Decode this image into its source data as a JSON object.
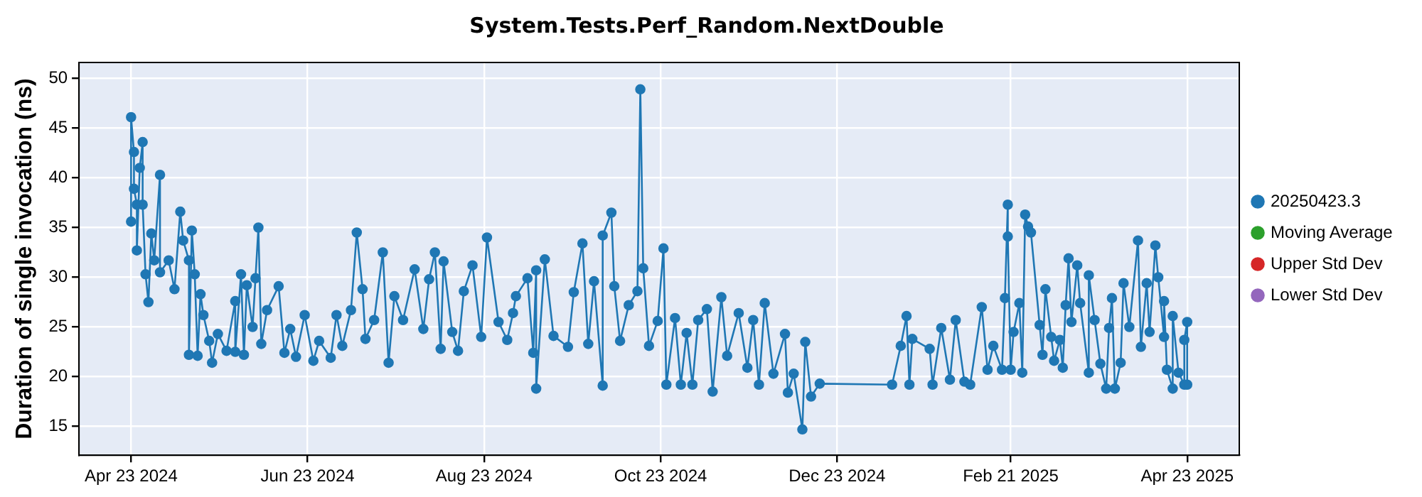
{
  "chart_data": {
    "type": "line",
    "title": "System.Tests.Perf_Random.NextDouble",
    "ylabel": "Duration of single invocation (ns)",
    "xlim": [
      "2024-04-05",
      "2025-05-11"
    ],
    "xticks": [
      {
        "value": "2024-04-23",
        "label": "Apr 23 2024"
      },
      {
        "value": "2024-06-23",
        "label": "Jun 23 2024"
      },
      {
        "value": "2024-08-23",
        "label": "Aug 23 2024"
      },
      {
        "value": "2024-10-23",
        "label": "Oct 23 2024"
      },
      {
        "value": "2024-12-23",
        "label": "Dec 23 2024"
      },
      {
        "value": "2025-02-21",
        "label": "Feb 21 2025"
      },
      {
        "value": "2025-04-23",
        "label": "Apr 23 2025"
      }
    ],
    "ylim": [
      12.1,
      51.6
    ],
    "yticks": [
      15,
      20,
      25,
      30,
      35,
      40,
      45,
      50
    ],
    "grid": true,
    "legend": "right",
    "marker": "circle",
    "line_style": "solid",
    "x": [
      "2024-04-23",
      "2024-04-23",
      "2024-04-24",
      "2024-04-24",
      "2024-04-25",
      "2024-04-25",
      "2024-04-26",
      "2024-04-27",
      "2024-04-27",
      "2024-04-28",
      "2024-04-29",
      "2024-04-30",
      "2024-05-01",
      "2024-05-03",
      "2024-05-03",
      "2024-05-06",
      "2024-05-08",
      "2024-05-10",
      "2024-05-11",
      "2024-05-13",
      "2024-05-13",
      "2024-05-14",
      "2024-05-15",
      "2024-05-16",
      "2024-05-17",
      "2024-05-18",
      "2024-05-20",
      "2024-05-21",
      "2024-05-23",
      "2024-05-26",
      "2024-05-29",
      "2024-05-29",
      "2024-05-31",
      "2024-06-01",
      "2024-06-02",
      "2024-06-04",
      "2024-06-05",
      "2024-06-06",
      "2024-06-07",
      "2024-06-09",
      "2024-06-13",
      "2024-06-15",
      "2024-06-17",
      "2024-06-19",
      "2024-06-22",
      "2024-06-25",
      "2024-06-27",
      "2024-07-01",
      "2024-07-03",
      "2024-07-05",
      "2024-07-08",
      "2024-07-10",
      "2024-07-12",
      "2024-07-13",
      "2024-07-16",
      "2024-07-19",
      "2024-07-21",
      "2024-07-23",
      "2024-07-26",
      "2024-07-30",
      "2024-08-02",
      "2024-08-04",
      "2024-08-06",
      "2024-08-08",
      "2024-08-09",
      "2024-08-12",
      "2024-08-14",
      "2024-08-16",
      "2024-08-19",
      "2024-08-22",
      "2024-08-24",
      "2024-08-28",
      "2024-08-31",
      "2024-09-02",
      "2024-09-03",
      "2024-09-07",
      "2024-09-09",
      "2024-09-10",
      "2024-09-10",
      "2024-09-13",
      "2024-09-16",
      "2024-09-21",
      "2024-09-23",
      "2024-09-26",
      "2024-09-28",
      "2024-09-30",
      "2024-10-03",
      "2024-10-03",
      "2024-10-06",
      "2024-10-07",
      "2024-10-09",
      "2024-10-12",
      "2024-10-15",
      "2024-10-16",
      "2024-10-17",
      "2024-10-19",
      "2024-10-22",
      "2024-10-24",
      "2024-10-25",
      "2024-10-28",
      "2024-10-30",
      "2024-11-01",
      "2024-11-03",
      "2024-11-05",
      "2024-11-08",
      "2024-11-10",
      "2024-11-13",
      "2024-11-15",
      "2024-11-19",
      "2024-11-22",
      "2024-11-24",
      "2024-11-26",
      "2024-11-28",
      "2024-12-01",
      "2024-12-05",
      "2024-12-06",
      "2024-12-08",
      "2024-12-11",
      "2024-12-12",
      "2024-12-14",
      "2024-12-17",
      "2025-01-11",
      "2025-01-14",
      "2025-01-16",
      "2025-01-17",
      "2025-01-18",
      "2025-01-24",
      "2025-01-25",
      "2025-01-28",
      "2025-01-31",
      "2025-02-02",
      "2025-02-05",
      "2025-02-07",
      "2025-02-11",
      "2025-02-13",
      "2025-02-15",
      "2025-02-18",
      "2025-02-19",
      "2025-02-20",
      "2025-02-20",
      "2025-02-21",
      "2025-02-22",
      "2025-02-24",
      "2025-02-25",
      "2025-02-26",
      "2025-02-27",
      "2025-02-28",
      "2025-03-03",
      "2025-03-04",
      "2025-03-05",
      "2025-03-07",
      "2025-03-08",
      "2025-03-10",
      "2025-03-11",
      "2025-03-12",
      "2025-03-13",
      "2025-03-14",
      "2025-03-16",
      "2025-03-17",
      "2025-03-20",
      "2025-03-20",
      "2025-03-22",
      "2025-03-24",
      "2025-03-26",
      "2025-03-27",
      "2025-03-28",
      "2025-03-29",
      "2025-03-31",
      "2025-04-01",
      "2025-04-03",
      "2025-04-06",
      "2025-04-07",
      "2025-04-09",
      "2025-04-10",
      "2025-04-12",
      "2025-04-13",
      "2025-04-15",
      "2025-04-15",
      "2025-04-16",
      "2025-04-18",
      "2025-04-18",
      "2025-04-20",
      "2025-04-22",
      "2025-04-22",
      "2025-04-23",
      "2025-04-23"
    ],
    "series": [
      {
        "name": "20250423.3",
        "color": "#1f77b4",
        "values": [
          35.6,
          46.1,
          42.6,
          38.9,
          37.3,
          32.7,
          41.0,
          43.6,
          37.3,
          30.3,
          27.5,
          34.4,
          31.7,
          40.3,
          30.5,
          31.7,
          28.8,
          36.6,
          33.7,
          31.7,
          22.2,
          34.7,
          30.3,
          22.1,
          28.3,
          26.2,
          23.6,
          21.4,
          24.3,
          22.6,
          27.6,
          22.5,
          30.3,
          22.2,
          29.2,
          25.0,
          29.9,
          35.0,
          23.3,
          26.7,
          29.1,
          22.4,
          24.8,
          22.0,
          26.2,
          21.6,
          23.6,
          21.9,
          26.2,
          23.1,
          26.7,
          34.5,
          28.8,
          23.8,
          25.7,
          32.5,
          21.4,
          28.1,
          25.7,
          30.8,
          24.8,
          29.8,
          32.5,
          22.8,
          31.6,
          24.5,
          22.6,
          28.6,
          31.2,
          24.0,
          34.0,
          25.5,
          23.7,
          26.4,
          28.1,
          29.9,
          22.4,
          30.7,
          18.8,
          31.8,
          24.1,
          23.0,
          28.5,
          33.4,
          23.3,
          29.6,
          19.1,
          34.2,
          36.5,
          29.1,
          23.6,
          27.2,
          28.6,
          48.9,
          30.9,
          23.1,
          25.6,
          32.9,
          19.2,
          25.9,
          19.2,
          24.4,
          19.2,
          25.7,
          26.8,
          18.5,
          28.0,
          22.1,
          26.4,
          20.9,
          25.7,
          19.2,
          27.4,
          20.3,
          24.3,
          18.4,
          20.3,
          14.7,
          23.5,
          18.0,
          19.3,
          19.2,
          23.1,
          26.1,
          19.2,
          23.8,
          22.8,
          19.2,
          24.9,
          19.7,
          25.7,
          19.5,
          19.2,
          27.0,
          20.7,
          23.1,
          20.7,
          27.9,
          37.3,
          34.1,
          20.7,
          24.5,
          27.4,
          20.4,
          36.3,
          35.1,
          34.5,
          25.2,
          22.2,
          28.8,
          24.0,
          21.6,
          23.7,
          20.9,
          27.2,
          31.9,
          25.5,
          31.2,
          27.4,
          20.4,
          30.2,
          25.7,
          21.3,
          18.8,
          24.9,
          27.9,
          18.8,
          21.4,
          29.4,
          25.0,
          33.7,
          23.0,
          29.4,
          24.5,
          33.2,
          30.0,
          24.0,
          27.6,
          20.7,
          18.8,
          26.1,
          20.4,
          19.2,
          23.7,
          25.5,
          19.2
        ]
      },
      {
        "name": "Moving Average",
        "color": "#2ca02c",
        "values": [
          null,
          null,
          null,
          null,
          null,
          null,
          null,
          null,
          null,
          null,
          null,
          null,
          null,
          null,
          null,
          null,
          null,
          null,
          null,
          null,
          null,
          null,
          null,
          null,
          null,
          null,
          null,
          null,
          null,
          null,
          null,
          null,
          null,
          null,
          null,
          null,
          null,
          null,
          null,
          null,
          null,
          null,
          null,
          null,
          null,
          null,
          null,
          null,
          null,
          null,
          null,
          null,
          null,
          null,
          null,
          null,
          null,
          null,
          null,
          null,
          null,
          null,
          null,
          null,
          null,
          null,
          null,
          null,
          null,
          null,
          null,
          null,
          null,
          null,
          null,
          null,
          null,
          null,
          null,
          null,
          null,
          null,
          null,
          null,
          null,
          null,
          null,
          null,
          null,
          null,
          null,
          null,
          null,
          null,
          null,
          null,
          null,
          null,
          null,
          null,
          null,
          null,
          null,
          null,
          null,
          null,
          null,
          null,
          null,
          null,
          null,
          null,
          null,
          null,
          null,
          null,
          null,
          null,
          null,
          null,
          null,
          null,
          null,
          null,
          null,
          null,
          null,
          null,
          null,
          null,
          null,
          null,
          null,
          null,
          null,
          null,
          null,
          null,
          null,
          null,
          null,
          null,
          null,
          null,
          null,
          null,
          null,
          null,
          null,
          null,
          null,
          null,
          null,
          null,
          null,
          null,
          null,
          null,
          null,
          null,
          null,
          null,
          null,
          null,
          null,
          null,
          null,
          null,
          null,
          null,
          null,
          null,
          null,
          null,
          null,
          null,
          null,
          null,
          null,
          null,
          null,
          null,
          null,
          null,
          null,
          null
        ]
      },
      {
        "name": "Upper Std Dev",
        "color": "#d62728",
        "values": [
          null,
          null,
          null,
          null,
          null,
          null,
          null,
          null,
          null,
          null,
          null,
          null,
          null,
          null,
          null,
          null,
          null,
          null,
          null,
          null,
          null,
          null,
          null,
          null,
          null,
          null,
          null,
          null,
          null,
          null,
          null,
          null,
          null,
          null,
          null,
          null,
          null,
          null,
          null,
          null,
          null,
          null,
          null,
          null,
          null,
          null,
          null,
          null,
          null,
          null,
          null,
          null,
          null,
          null,
          null,
          null,
          null,
          null,
          null,
          null,
          null,
          null,
          null,
          null,
          null,
          null,
          null,
          null,
          null,
          null,
          null,
          null,
          null,
          null,
          null,
          null,
          null,
          null,
          null,
          null,
          null,
          null,
          null,
          null,
          null,
          null,
          null,
          null,
          null,
          null,
          null,
          null,
          null,
          null,
          null,
          null,
          null,
          null,
          null,
          null,
          null,
          null,
          null,
          null,
          null,
          null,
          null,
          null,
          null,
          null,
          null,
          null,
          null,
          null,
          null,
          null,
          null,
          null,
          null,
          null,
          null,
          null,
          null,
          null,
          null,
          null,
          null,
          null,
          null,
          null,
          null,
          null,
          null,
          null,
          null,
          null,
          null,
          null,
          null,
          null,
          null,
          null,
          null,
          null,
          null,
          null,
          null,
          null,
          null,
          null,
          null,
          null,
          null,
          null,
          null,
          null,
          null,
          null,
          null,
          null,
          null,
          null,
          null,
          null,
          null,
          null,
          null,
          null,
          null,
          null,
          null,
          null,
          null,
          null,
          null,
          null,
          null,
          null,
          null,
          null,
          null,
          null,
          null,
          null,
          null,
          null
        ]
      },
      {
        "name": "Lower Std Dev",
        "color": "#9467bd",
        "values": [
          null,
          null,
          null,
          null,
          null,
          null,
          null,
          null,
          null,
          null,
          null,
          null,
          null,
          null,
          null,
          null,
          null,
          null,
          null,
          null,
          null,
          null,
          null,
          null,
          null,
          null,
          null,
          null,
          null,
          null,
          null,
          null,
          null,
          null,
          null,
          null,
          null,
          null,
          null,
          null,
          null,
          null,
          null,
          null,
          null,
          null,
          null,
          null,
          null,
          null,
          null,
          null,
          null,
          null,
          null,
          null,
          null,
          null,
          null,
          null,
          null,
          null,
          null,
          null,
          null,
          null,
          null,
          null,
          null,
          null,
          null,
          null,
          null,
          null,
          null,
          null,
          null,
          null,
          null,
          null,
          null,
          null,
          null,
          null,
          null,
          null,
          null,
          null,
          null,
          null,
          null,
          null,
          null,
          null,
          null,
          null,
          null,
          null,
          null,
          null,
          null,
          null,
          null,
          null,
          null,
          null,
          null,
          null,
          null,
          null,
          null,
          null,
          null,
          null,
          null,
          null,
          null,
          null,
          null,
          null,
          null,
          null,
          null,
          null,
          null,
          null,
          null,
          null,
          null,
          null,
          null,
          null,
          null,
          null,
          null,
          null,
          null,
          null,
          null,
          null,
          null,
          null,
          null,
          null,
          null,
          null,
          null,
          null,
          null,
          null,
          null,
          null,
          null,
          null,
          null,
          null,
          null,
          null,
          null,
          null,
          null,
          null,
          null,
          null,
          null,
          null,
          null,
          null,
          null,
          null,
          null,
          null,
          null,
          null,
          null,
          null,
          null,
          null,
          null,
          null,
          null,
          null,
          null,
          null,
          null,
          null
        ]
      }
    ]
  }
}
